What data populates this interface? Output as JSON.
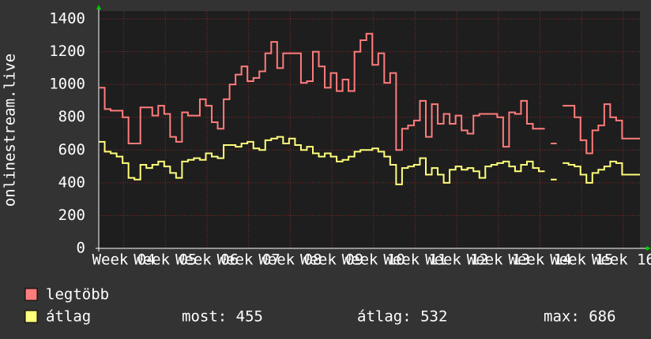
{
  "chart_data": {
    "type": "line",
    "step": true,
    "y_label": "onlinestream.live",
    "xlim": [
      0,
      91
    ],
    "xticks": [
      {
        "value": 4.2,
        "label": "Week 04"
      },
      {
        "value": 11.2,
        "label": "Week 05"
      },
      {
        "value": 18.2,
        "label": "Week 06"
      },
      {
        "value": 25.2,
        "label": "Week 07"
      },
      {
        "value": 32.2,
        "label": "Week 08"
      },
      {
        "value": 39.2,
        "label": "Week 09"
      },
      {
        "value": 46.2,
        "label": "Week 10"
      },
      {
        "value": 53.2,
        "label": "Week 11"
      },
      {
        "value": 60.2,
        "label": "Week 12"
      },
      {
        "value": 67.2,
        "label": "Week 13"
      },
      {
        "value": 74.2,
        "label": "Week 14"
      },
      {
        "value": 81.2,
        "label": "Week 15"
      },
      {
        "value": 88.2,
        "label": "Week 16"
      }
    ],
    "ylim": [
      0,
      1400
    ],
    "yticks": [
      0,
      200,
      400,
      600,
      800,
      1000,
      1200,
      1400
    ],
    "grid": true,
    "x": [
      0,
      1,
      2,
      3,
      4,
      5,
      6,
      7,
      8,
      9,
      10,
      11,
      12,
      13,
      14,
      15,
      16,
      17,
      18,
      19,
      20,
      21,
      22,
      23,
      24,
      25,
      26,
      27,
      28,
      29,
      30,
      31,
      32,
      33,
      34,
      35,
      36,
      37,
      38,
      39,
      40,
      41,
      42,
      43,
      44,
      45,
      46,
      47,
      48,
      49,
      50,
      51,
      52,
      53,
      54,
      55,
      56,
      57,
      58,
      59,
      60,
      61,
      62,
      63,
      64,
      65,
      66,
      67,
      68,
      69,
      70,
      71,
      72,
      73,
      74,
      75,
      76,
      77,
      78,
      79,
      80,
      81,
      82,
      83,
      84,
      85,
      86,
      87,
      88,
      89,
      90
    ],
    "series": [
      {
        "name": "legtöbb",
        "color": "#ff7c7c",
        "values": [
          980,
          850,
          840,
          840,
          800,
          640,
          640,
          860,
          860,
          810,
          870,
          820,
          680,
          650,
          830,
          810,
          810,
          910,
          870,
          770,
          730,
          910,
          1000,
          1060,
          1110,
          1020,
          1040,
          1080,
          1190,
          1260,
          1100,
          1190,
          1190,
          1190,
          1010,
          1020,
          1200,
          1110,
          980,
          1070,
          960,
          1030,
          960,
          1200,
          1270,
          1310,
          1120,
          1190,
          1010,
          1070,
          600,
          730,
          750,
          780,
          900,
          680,
          880,
          760,
          820,
          760,
          810,
          720,
          700,
          810,
          820,
          820,
          820,
          800,
          620,
          830,
          820,
          900,
          760,
          730,
          730,
          null,
          640,
          null,
          870,
          870,
          800,
          660,
          580,
          720,
          750,
          880,
          800,
          780,
          670,
          670,
          670
        ]
      },
      {
        "name": "átlag",
        "color": "#ffff7c",
        "values": [
          650,
          590,
          580,
          560,
          520,
          430,
          420,
          510,
          490,
          510,
          530,
          500,
          460,
          430,
          530,
          540,
          550,
          540,
          580,
          560,
          550,
          630,
          630,
          620,
          640,
          650,
          610,
          600,
          660,
          670,
          680,
          640,
          670,
          630,
          600,
          620,
          580,
          560,
          580,
          560,
          530,
          540,
          560,
          590,
          600,
          600,
          610,
          590,
          560,
          510,
          390,
          490,
          500,
          510,
          550,
          450,
          490,
          450,
          400,
          480,
          500,
          480,
          490,
          470,
          430,
          500,
          510,
          520,
          530,
          500,
          470,
          510,
          530,
          490,
          470,
          null,
          420,
          null,
          520,
          510,
          500,
          450,
          400,
          460,
          480,
          500,
          530,
          520,
          450,
          450,
          450
        ]
      }
    ],
    "legend_stats": [
      "most: 455",
      "átlag: 532",
      "max: 686"
    ]
  }
}
